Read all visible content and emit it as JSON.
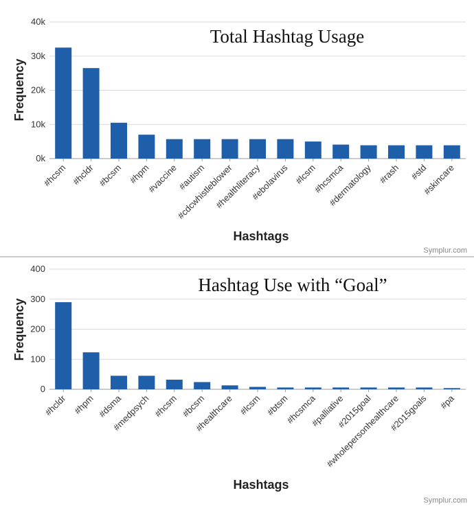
{
  "colors": {
    "bar": "#1f5ea8",
    "grid": "#d9d9d9",
    "axis": "#999999",
    "divider": "#9a9a9a"
  },
  "credit": "Symplur.com",
  "chart_data": [
    {
      "type": "bar",
      "title": "Total Hashtag Usage",
      "xlabel": "Hashtags",
      "ylabel": "Frequency",
      "ylim": [
        0,
        40000
      ],
      "yticks": [
        0,
        10000,
        20000,
        30000,
        40000
      ],
      "ytick_labels": [
        "0k",
        "10k",
        "20k",
        "30k",
        "40k"
      ],
      "grid": "horizontal",
      "categories": [
        "#hcsm",
        "#hcldr",
        "#bcsm",
        "#hpm",
        "#vaccine",
        "#autism",
        "#cdcwhistleblower",
        "#healthliteracy",
        "#ebolavirus",
        "#lcsm",
        "#hcsmca",
        "#dermatology",
        "#rash",
        "#std",
        "#skincare"
      ],
      "values": [
        32500,
        26500,
        10500,
        7000,
        5700,
        5700,
        5700,
        5700,
        5700,
        5000,
        4100,
        3900,
        3900,
        3900,
        3900
      ]
    },
    {
      "type": "bar",
      "title": "Hashtag Use with “Goal”",
      "xlabel": "Hashtags",
      "ylabel": "Frequency",
      "ylim": [
        0,
        400
      ],
      "yticks": [
        0,
        100,
        200,
        300,
        400
      ],
      "ytick_labels": [
        "0",
        "100",
        "200",
        "300",
        "400"
      ],
      "grid": "horizontal",
      "categories": [
        "#hcldr",
        "#hpm",
        "#dsma",
        "#medpsych",
        "#hcsm",
        "#bcsm",
        "#healthcare",
        "#lcsm",
        "#btsm",
        "#hcsmca",
        "#palliative",
        "#2015goal",
        "#wholepersonhealthcare",
        "#2015goals",
        "#pa"
      ],
      "values": [
        290,
        123,
        45,
        45,
        32,
        24,
        13,
        8,
        6,
        6,
        6,
        6,
        6,
        6,
        4
      ]
    }
  ]
}
